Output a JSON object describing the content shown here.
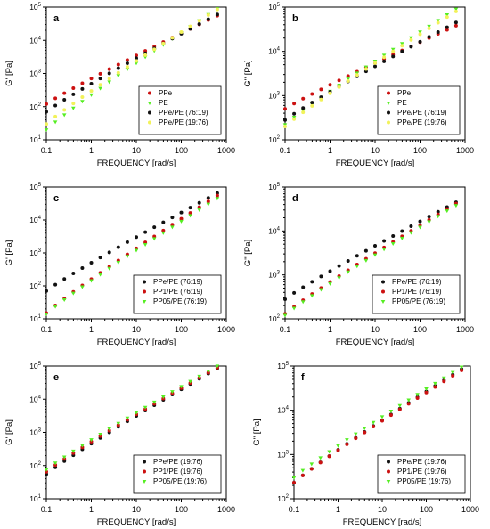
{
  "colors": {
    "black": "#111111",
    "red": "#cc1111",
    "green": "#55ee22",
    "yellow": "#f2f25a"
  },
  "chart_data": [
    {
      "id": "a",
      "panel_label": "a",
      "type": "scatter",
      "scale": "log-log",
      "xlabel": "FREQUENCY [rad/s]",
      "ylabel": "G' [Pa]",
      "xlim": [
        0.1,
        1000
      ],
      "ylim": [
        10,
        100000
      ],
      "xticks": [
        "0.1",
        "1",
        "10",
        "100",
        "1000"
      ],
      "yticks": [
        "10",
        "10",
        "10",
        "10",
        "10"
      ],
      "yexps": [
        "1",
        "2",
        "3",
        "4",
        "5"
      ],
      "legend": "bottom-right",
      "series": [
        {
          "name": "PPe",
          "color": "red",
          "start": 120,
          "end": 55000
        },
        {
          "name": "PE",
          "color": "green",
          "start": 20,
          "end": 90000
        },
        {
          "name": "PPe/PE (76:19)",
          "color": "black",
          "start": 70,
          "end": 60000
        },
        {
          "name": "PPe/PE (19:76)",
          "color": "yellow",
          "start": 30,
          "end": 85000
        }
      ]
    },
    {
      "id": "b",
      "panel_label": "b",
      "type": "scatter",
      "scale": "log-log",
      "xlabel": "FREQUENCY [rad/s]",
      "ylabel": "G\" [Pa]",
      "xlim": [
        0.1,
        1000
      ],
      "ylim": [
        100,
        100000
      ],
      "xticks": [
        "0.1",
        "1",
        "10",
        "100",
        "1000"
      ],
      "yticks": [
        "10",
        "10",
        "10",
        "10"
      ],
      "yexps": [
        "2",
        "3",
        "4",
        "5"
      ],
      "legend": "bottom-right",
      "series": [
        {
          "name": "PPe",
          "color": "red",
          "start": 500,
          "end": 38000
        },
        {
          "name": "PE",
          "color": "green",
          "start": 220,
          "end": 90000
        },
        {
          "name": "PPe/PE (76:19)",
          "color": "black",
          "start": 280,
          "end": 45000
        },
        {
          "name": "PPe/PE (19:76)",
          "color": "yellow",
          "start": 200,
          "end": 80000
        }
      ]
    },
    {
      "id": "c",
      "panel_label": "c",
      "type": "scatter",
      "scale": "log-log",
      "xlabel": "FREQUENCY [rad/s]",
      "ylabel": "G' [Pa]",
      "xlim": [
        0.1,
        1000
      ],
      "ylim": [
        10,
        100000
      ],
      "xticks": [
        "0.1",
        "1",
        "10",
        "100",
        "1000"
      ],
      "yticks": [
        "10",
        "10",
        "10",
        "10",
        "10"
      ],
      "yexps": [
        "1",
        "2",
        "3",
        "4",
        "5"
      ],
      "legend": "bottom-right",
      "series": [
        {
          "name": "PPe/PE (76:19)",
          "color": "black",
          "start": 70,
          "end": 65000
        },
        {
          "name": "PP1/PE (76:19)",
          "color": "red",
          "start": 15,
          "end": 55000
        },
        {
          "name": "PP05/PE (76:19)",
          "color": "green",
          "start": 14,
          "end": 45000
        }
      ]
    },
    {
      "id": "d",
      "panel_label": "d",
      "type": "scatter",
      "scale": "log-log",
      "xlabel": "FREQUENCY [rad/s]",
      "ylabel": "G\" [Pa]",
      "xlim": [
        0.1,
        1000
      ],
      "ylim": [
        100,
        100000
      ],
      "xticks": [
        "0.1",
        "1",
        "10",
        "100",
        "1000"
      ],
      "yticks": [
        "10",
        "10",
        "10",
        "10"
      ],
      "yexps": [
        "2",
        "3",
        "4",
        "5"
      ],
      "legend": "bottom-right",
      "series": [
        {
          "name": "PPe/PE (76:19)",
          "color": "black",
          "start": 280,
          "end": 45000
        },
        {
          "name": "PP1/PE (76:19)",
          "color": "red",
          "start": 130,
          "end": 42000
        },
        {
          "name": "PP05/PE (76:19)",
          "color": "green",
          "start": 120,
          "end": 38000
        }
      ]
    },
    {
      "id": "e",
      "panel_label": "e",
      "type": "scatter",
      "scale": "log-log",
      "xlabel": "FREQUENCY [rad/s]",
      "ylabel": "G' [Pa]",
      "xlim": [
        0.1,
        1000
      ],
      "ylim": [
        10,
        100000
      ],
      "xticks": [
        "0.1",
        "1",
        "10",
        "100",
        "1000"
      ],
      "yticks": [
        "10",
        "10",
        "10",
        "10",
        "10"
      ],
      "yexps": [
        "1",
        "2",
        "3",
        "4",
        "5"
      ],
      "legend": "bottom-right",
      "series": [
        {
          "name": "PPe/PE (19:76)",
          "color": "black",
          "start": 55,
          "end": 85000
        },
        {
          "name": "PP1/PE (19:76)",
          "color": "red",
          "start": 65,
          "end": 90000
        },
        {
          "name": "PP05/PE (19:76)",
          "color": "green",
          "start": 75,
          "end": 100000
        }
      ]
    },
    {
      "id": "f",
      "panel_label": "f",
      "type": "scatter",
      "scale": "log-log",
      "xlabel": "FREQUENCY [rad/s]",
      "ylabel": "G\" [Pa]",
      "xlim": [
        0.1,
        1000
      ],
      "ylim": [
        100,
        100000
      ],
      "xticks": [
        "0.1",
        "1",
        "10",
        "100",
        "1000"
      ],
      "yticks": [
        "10",
        "10",
        "10",
        "10"
      ],
      "yexps": [
        "2",
        "3",
        "4",
        "5"
      ],
      "legend": "bottom-right",
      "series": [
        {
          "name": "PPe/PE (19:76)",
          "color": "black",
          "start": 230,
          "end": 85000
        },
        {
          "name": "PP1/PE (19:76)",
          "color": "red",
          "start": 230,
          "end": 80000
        },
        {
          "name": "PP05/PE (19:76)",
          "color": "green",
          "start": 300,
          "end": 95000
        }
      ]
    }
  ]
}
